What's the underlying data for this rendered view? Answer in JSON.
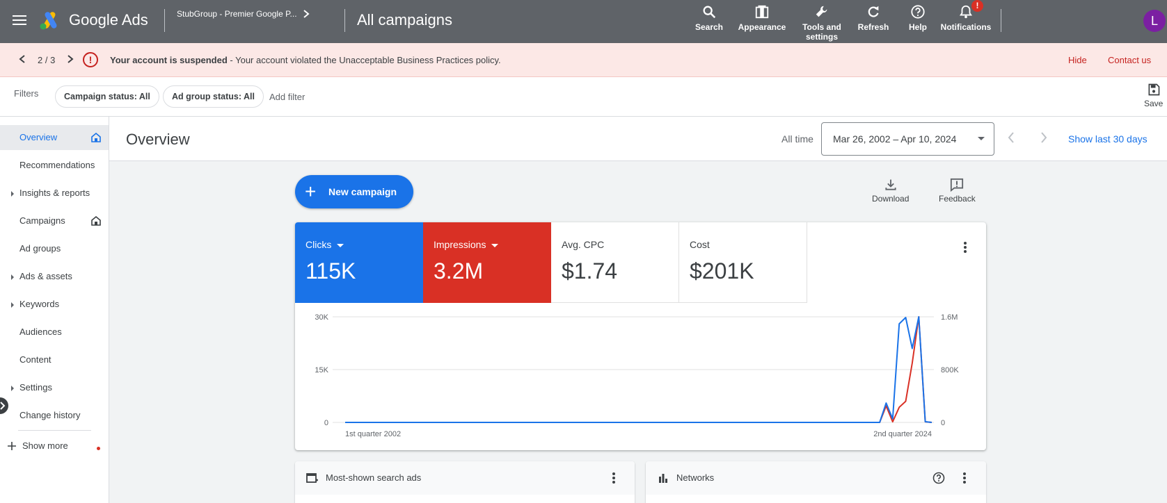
{
  "topbar": {
    "brand": "Google Ads",
    "account_name": "StubGroup - Premier Google P...",
    "page_title": "All campaigns",
    "tools": [
      {
        "label": "Search",
        "icon": "search-icon"
      },
      {
        "label": "Appearance",
        "icon": "appearance-icon"
      },
      {
        "label_line1": "Tools and",
        "label_line2": "settings",
        "icon": "wrench-icon"
      },
      {
        "label": "Refresh",
        "icon": "refresh-icon"
      },
      {
        "label": "Help",
        "icon": "help-icon"
      },
      {
        "label": "Notifications",
        "icon": "bell-icon",
        "badge": "!"
      }
    ],
    "avatar_initial": "L"
  },
  "alert": {
    "counter": "2 / 3",
    "title": "Your account is suspended",
    "message": " - Your account violated the Unacceptable Business Practices policy.",
    "hide_label": "Hide",
    "contact_label": "Contact us"
  },
  "filters": {
    "label": "Filters",
    "chips": [
      "Campaign status: All",
      "Ad group status: All"
    ],
    "add_filter": "Add filter",
    "save_label": "Save"
  },
  "sidebar": {
    "items": [
      {
        "label": "Overview",
        "active": true,
        "expandable": false,
        "home": true
      },
      {
        "label": "Recommendations",
        "expandable": false
      },
      {
        "label": "Insights & reports",
        "expandable": true
      },
      {
        "label": "Campaigns",
        "expandable": false,
        "home": true
      },
      {
        "label": "Ad groups",
        "expandable": false
      },
      {
        "label": "Ads & assets",
        "expandable": true
      },
      {
        "label": "Keywords",
        "expandable": true
      },
      {
        "label": "Audiences",
        "expandable": false
      },
      {
        "label": "Content",
        "expandable": false
      },
      {
        "label": "Settings",
        "expandable": true
      },
      {
        "label": "Change history",
        "expandable": false
      }
    ],
    "show_more": "Show more"
  },
  "overview": {
    "title": "Overview",
    "range_label": "All time",
    "date_range": "Mar 26, 2002 – Apr 10, 2024",
    "show_last": "Show last 30 days"
  },
  "actions": {
    "new_campaign": "New campaign",
    "download": "Download",
    "feedback": "Feedback"
  },
  "metrics": [
    {
      "label": "Clicks",
      "value": "115K",
      "color": "#1a73e8",
      "selected": true
    },
    {
      "label": "Impressions",
      "value": "3.2M",
      "color": "#d93025",
      "selected": true
    },
    {
      "label": "Avg. CPC",
      "value": "$1.74"
    },
    {
      "label": "Cost",
      "value": "$201K"
    }
  ],
  "chart_data": {
    "type": "line",
    "x_labels": [
      "1st quarter 2002",
      "2nd quarter 2024"
    ],
    "left_axis": {
      "ticks": [
        "30K",
        "15K",
        "0"
      ],
      "ylim": [
        0,
        30000
      ]
    },
    "right_axis": {
      "ticks": [
        "1.6M",
        "800K",
        "0"
      ],
      "ylim": [
        0,
        1600000
      ]
    },
    "series": [
      {
        "name": "Clicks",
        "color": "#1a73e8",
        "axis": "left",
        "values": [
          0,
          0,
          0,
          0,
          0,
          0,
          0,
          0,
          0,
          0,
          0,
          0,
          0,
          0,
          0,
          0,
          0,
          0,
          0,
          0,
          0,
          0,
          0,
          0,
          0,
          0,
          0,
          0,
          0,
          0,
          0,
          0,
          0,
          0,
          0,
          0,
          0,
          0,
          0,
          0,
          0,
          0,
          0,
          0,
          0,
          0,
          0,
          0,
          0,
          0,
          0,
          0,
          0,
          0,
          0,
          0,
          0,
          0,
          0,
          0,
          0,
          0,
          0,
          0,
          0,
          0,
          0,
          0,
          0,
          0,
          0,
          0,
          0,
          0,
          0,
          0,
          0,
          0,
          0,
          0,
          0,
          0,
          0,
          5500,
          1000,
          28000,
          29800,
          21000,
          30000,
          200,
          0
        ]
      },
      {
        "name": "Impressions",
        "color": "#d93025",
        "axis": "right",
        "values": [
          0,
          0,
          0,
          0,
          0,
          0,
          0,
          0,
          0,
          0,
          0,
          0,
          0,
          0,
          0,
          0,
          0,
          0,
          0,
          0,
          0,
          0,
          0,
          0,
          0,
          0,
          0,
          0,
          0,
          0,
          0,
          0,
          0,
          0,
          0,
          0,
          0,
          0,
          0,
          0,
          0,
          0,
          0,
          0,
          0,
          0,
          0,
          0,
          0,
          0,
          0,
          0,
          0,
          0,
          0,
          0,
          0,
          0,
          0,
          0,
          0,
          0,
          0,
          0,
          0,
          0,
          0,
          0,
          0,
          0,
          0,
          0,
          0,
          0,
          0,
          0,
          0,
          0,
          0,
          0,
          0,
          0,
          0,
          250000,
          10000,
          230000,
          320000,
          900000,
          1600000,
          10000,
          0
        ]
      }
    ]
  },
  "sub_cards": {
    "search_ads": "Most-shown search ads",
    "networks": "Networks"
  }
}
